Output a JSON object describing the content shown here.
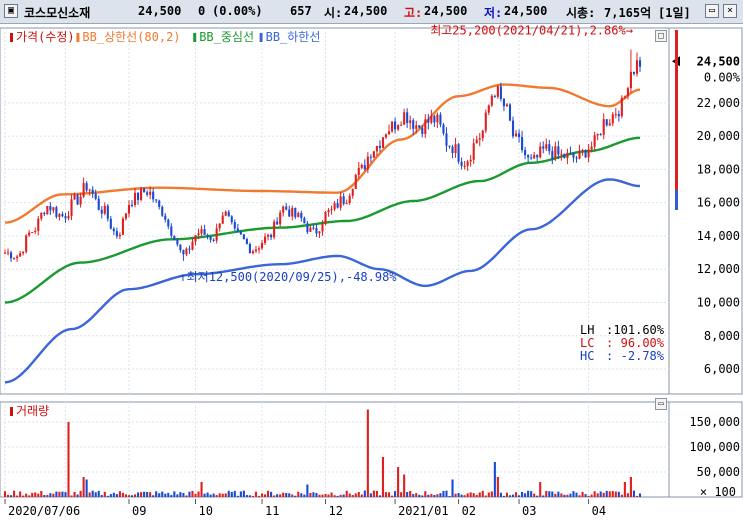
{
  "header": {
    "stock_name": "코스모신소재",
    "price": "24,500",
    "change": "0",
    "change_pct": "(0.00%)",
    "volume": "657",
    "open_label": "시:",
    "open": "24,500",
    "high_label": "고:",
    "high": "24,500",
    "low_label": "저:",
    "low": "24,500",
    "cap_label": "시총:",
    "cap": "7,165억",
    "period": "[1일]",
    "colors": {
      "open": "#000000",
      "high": "#d01010",
      "low": "#1010c0"
    }
  },
  "window_buttons": [
    {
      "name": "minimize",
      "glyph": "▭"
    },
    {
      "name": "close",
      "glyph": "×"
    }
  ],
  "chart_data": [
    {
      "type": "candlestick",
      "legend": [
        {
          "label": "가격(수정)",
          "color": "#d01010"
        },
        {
          "label": "BB_상한선(80,2)",
          "color": "#f07a30"
        },
        {
          "label": "BB_중심선",
          "color": "#1a9a30"
        },
        {
          "label": "BB_하한선",
          "color": "#3a66d8"
        }
      ],
      "ylim": [
        4500,
        26500
      ],
      "yticks": [
        6000,
        8000,
        10000,
        12000,
        14000,
        16000,
        18000,
        20000,
        22000
      ],
      "ytick_labels": [
        "6,000",
        "8,000",
        "10,000",
        "12,000",
        "14,000",
        "16,000",
        "18,000",
        "20,000",
        "22,000"
      ],
      "current_price_label": "24,500",
      "current_change_label": "0.00%",
      "x_labels": [
        "2020/07/06",
        "09",
        "10",
        "11",
        "12",
        "2021/01",
        "02",
        "03",
        "04"
      ],
      "price_anchors": [
        [
          "2020-07-06",
          13000
        ],
        [
          "2020-07-10",
          12800
        ],
        [
          "2020-07-17",
          14300
        ],
        [
          "2020-07-24",
          15800
        ],
        [
          "2020-07-31",
          15200
        ],
        [
          "2020-08-07",
          16200
        ],
        [
          "2020-08-12",
          17000
        ],
        [
          "2020-08-19",
          15600
        ],
        [
          "2020-08-26",
          14100
        ],
        [
          "2020-09-02",
          16200
        ],
        [
          "2020-09-09",
          16700
        ],
        [
          "2020-09-16",
          15500
        ],
        [
          "2020-09-21",
          14300
        ],
        [
          "2020-09-25",
          12800
        ],
        [
          "2020-10-02",
          14200
        ],
        [
          "2020-10-09",
          13900
        ],
        [
          "2020-10-14",
          15400
        ],
        [
          "2020-10-21",
          14000
        ],
        [
          "2020-10-28",
          13200
        ],
        [
          "2020-11-04",
          13900
        ],
        [
          "2020-11-11",
          15700
        ],
        [
          "2020-11-18",
          15100
        ],
        [
          "2020-11-25",
          14200
        ],
        [
          "2020-12-02",
          15400
        ],
        [
          "2020-12-09",
          16200
        ],
        [
          "2020-12-16",
          17800
        ],
        [
          "2020-12-23",
          19300
        ],
        [
          "2020-12-30",
          20500
        ],
        [
          "2021-01-06",
          21300
        ],
        [
          "2021-01-13",
          20600
        ],
        [
          "2021-01-20",
          21000
        ],
        [
          "2021-01-27",
          19500
        ],
        [
          "2021-02-03",
          18500
        ],
        [
          "2021-02-10",
          20000
        ],
        [
          "2021-02-17",
          22800
        ],
        [
          "2021-02-22",
          21800
        ],
        [
          "2021-02-26",
          19700
        ],
        [
          "2021-03-05",
          18400
        ],
        [
          "2021-03-12",
          19200
        ],
        [
          "2021-03-19",
          18800
        ],
        [
          "2021-03-26",
          18700
        ],
        [
          "2021-04-02",
          19400
        ],
        [
          "2021-04-09",
          21000
        ],
        [
          "2021-04-16",
          21800
        ],
        [
          "2021-04-21",
          24000
        ],
        [
          "2021-04-26",
          24500
        ]
      ],
      "bb_upper_anchors": [
        [
          "2020-07-06",
          14800
        ],
        [
          "2020-08-01",
          16500
        ],
        [
          "2020-09-15",
          16900
        ],
        [
          "2020-11-01",
          16700
        ],
        [
          "2020-12-07",
          16600
        ],
        [
          "2021-01-05",
          19800
        ],
        [
          "2021-02-01",
          22400
        ],
        [
          "2021-02-22",
          23100
        ],
        [
          "2021-03-15",
          22900
        ],
        [
          "2021-04-12",
          21800
        ],
        [
          "2021-04-26",
          22800
        ]
      ],
      "bb_mid_anchors": [
        [
          "2020-07-06",
          10000
        ],
        [
          "2020-08-10",
          12400
        ],
        [
          "2020-09-20",
          13800
        ],
        [
          "2020-11-10",
          14500
        ],
        [
          "2020-12-10",
          14900
        ],
        [
          "2021-01-10",
          16100
        ],
        [
          "2021-02-10",
          17300
        ],
        [
          "2021-03-05",
          18400
        ],
        [
          "2021-04-01",
          19100
        ],
        [
          "2021-04-26",
          19900
        ]
      ],
      "bb_lower_anchors": [
        [
          "2020-07-06",
          5200
        ],
        [
          "2020-08-05",
          8400
        ],
        [
          "2020-09-01",
          10800
        ],
        [
          "2020-10-01",
          11700
        ],
        [
          "2020-11-10",
          12300
        ],
        [
          "2020-12-07",
          12800
        ],
        [
          "2020-12-25",
          12000
        ],
        [
          "2021-01-15",
          11000
        ],
        [
          "2021-02-05",
          11900
        ],
        [
          "2021-03-05",
          14400
        ],
        [
          "2021-04-12",
          17400
        ],
        [
          "2021-04-26",
          17000
        ]
      ],
      "annotations": [
        {
          "text": "최고25,200(2021/04/21),2.86%→",
          "date": "2021-04-21",
          "value": 25200,
          "color": "#d01010"
        },
        {
          "text": "↑최저12,500(2020/09/25),-48.98%",
          "date": "2020-09-25",
          "value": 12500,
          "color": "#1a40c0"
        }
      ],
      "stats": [
        {
          "label": "LH",
          "value": "101.60%",
          "color": "#000000"
        },
        {
          "label": "LC",
          "value": "96.00%",
          "color": "#d01010"
        },
        {
          "label": "HC",
          "value": "-2.78%",
          "color": "#1a40c0"
        }
      ]
    },
    {
      "type": "bar",
      "legend": [
        {
          "label": "거래량",
          "color": "#d01010"
        }
      ],
      "ylim": [
        0,
        190000
      ],
      "yticks": [
        50000,
        100000,
        150000
      ],
      "ytick_labels": [
        "50,000",
        "100,000",
        "150,000"
      ],
      "unit_label": "× 100",
      "spikes": [
        [
          "2020-08-04",
          150000
        ],
        [
          "2020-08-11",
          40000
        ],
        [
          "2020-08-12",
          35000
        ],
        [
          "2020-10-05",
          30000
        ],
        [
          "2020-11-23",
          25000
        ],
        [
          "2020-12-21",
          175000
        ],
        [
          "2020-12-28",
          80000
        ],
        [
          "2021-01-04",
          60000
        ],
        [
          "2021-01-06",
          45000
        ],
        [
          "2021-01-28",
          35000
        ],
        [
          "2021-02-17",
          70000
        ],
        [
          "2021-02-18",
          40000
        ],
        [
          "2021-03-10",
          30000
        ],
        [
          "2021-04-19",
          30000
        ],
        [
          "2021-04-21",
          40000
        ]
      ]
    }
  ]
}
